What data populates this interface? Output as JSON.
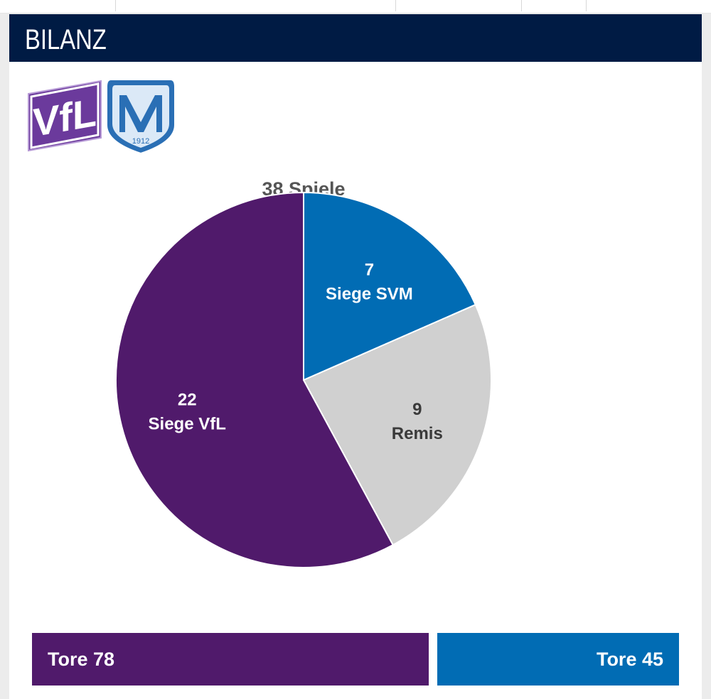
{
  "header": {
    "title": "BILANZ"
  },
  "logos": {
    "left": {
      "text": "VfL",
      "color": "#5a2a8a"
    },
    "right": {
      "letter": "M",
      "year": "1912",
      "color": "#2a6fb5"
    }
  },
  "colors": {
    "header_bg": "#001b44",
    "vfl": "#501a6b",
    "svm": "#016cb4",
    "remis": "#d0d0d0"
  },
  "chart_data": {
    "type": "pie",
    "title": "38 Spiele",
    "total": 38,
    "slices": [
      {
        "value": 7,
        "label": "Siege SVM",
        "color": "#016cb4",
        "text_color": "#ffffff"
      },
      {
        "value": 9,
        "label": "Remis",
        "color": "#d0d0d0",
        "text_color": "#3a3a3a"
      },
      {
        "value": 22,
        "label": "Siege VfL",
        "color": "#501a6b",
        "text_color": "#ffffff"
      }
    ]
  },
  "goals": {
    "vfl": {
      "label": "Tore 78",
      "value": 78
    },
    "svm": {
      "label": "Tore 45",
      "value": 45
    }
  }
}
